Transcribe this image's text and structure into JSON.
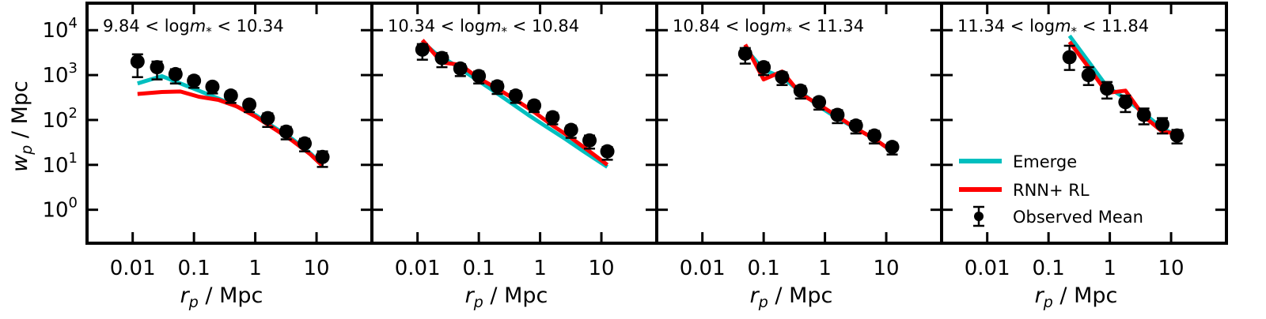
{
  "chart_data": {
    "type": "line",
    "layout": "1x4 panels, shared y-axis",
    "x_scale": "log",
    "y_scale": "log",
    "xlim": [
      0.0018,
      80
    ],
    "ylim": [
      0.18,
      40000
    ],
    "x_ticks": [
      {
        "value": 0.01,
        "label": "0.01"
      },
      {
        "value": 0.1,
        "label": "0.1"
      },
      {
        "value": 1,
        "label": "1"
      },
      {
        "value": 10,
        "label": "10"
      }
    ],
    "y_ticks": [
      {
        "value": 1,
        "base": "10",
        "exp": "0"
      },
      {
        "value": 10,
        "base": "10",
        "exp": "1"
      },
      {
        "value": 100,
        "base": "10",
        "exp": "2"
      },
      {
        "value": 1000,
        "base": "10",
        "exp": "3"
      },
      {
        "value": 10000,
        "base": "10",
        "exp": "4"
      }
    ],
    "xlabel": {
      "var": "r",
      "sub": "p",
      "unit": "/ Mpc"
    },
    "ylabel": {
      "var": "w",
      "sub": "p",
      "unit": "/ Mpc"
    },
    "grid": false,
    "legend": {
      "placement": "lower-right of last panel",
      "entries": [
        {
          "label": "Emerge",
          "color": "#00bfbf",
          "kind": "line"
        },
        {
          "label": "RNN+ RL",
          "color": "#ff0000",
          "kind": "line"
        },
        {
          "label": "Observed Mean",
          "color": "#000000",
          "kind": "errorbar"
        }
      ]
    },
    "colors": {
      "emerge": "#00bfbf",
      "rnn": "#ff0000",
      "observed": "#000000"
    },
    "panels": [
      {
        "label": {
          "low": "9.84",
          "high": "10.34"
        },
        "observed": {
          "x": [
            0.012,
            0.025,
            0.05,
            0.1,
            0.2,
            0.4,
            0.8,
            1.6,
            3.2,
            6.4,
            12.5
          ],
          "y": [
            2000,
            1500,
            1050,
            750,
            550,
            350,
            220,
            110,
            55,
            30,
            15
          ],
          "yerr_low": [
            1100,
            700,
            400,
            230,
            160,
            110,
            70,
            40,
            18,
            10,
            6
          ],
          "yerr_high": [
            900,
            500,
            300,
            180,
            120,
            80,
            50,
            30,
            15,
            8,
            5
          ]
        },
        "emerge": {
          "x": [
            0.012,
            0.03,
            0.06,
            0.12,
            0.25,
            0.5,
            1,
            2,
            4,
            8,
            12.5
          ],
          "y": [
            650,
            950,
            650,
            450,
            300,
            200,
            130,
            70,
            38,
            18,
            10
          ]
        },
        "rnn": {
          "x": [
            0.012,
            0.03,
            0.06,
            0.12,
            0.25,
            0.5,
            1,
            2,
            4,
            8,
            12.5
          ],
          "y": [
            380,
            420,
            430,
            330,
            280,
            200,
            120,
            65,
            35,
            17,
            9.5
          ]
        }
      },
      {
        "label": {
          "low": "10.34",
          "high": "10.84"
        },
        "observed": {
          "x": [
            0.012,
            0.025,
            0.05,
            0.1,
            0.2,
            0.4,
            0.8,
            1.6,
            3.2,
            6.4,
            12.5
          ],
          "y": [
            3700,
            2400,
            1400,
            950,
            560,
            350,
            210,
            115,
            60,
            35,
            20
          ],
          "yerr_low": [
            1500,
            900,
            450,
            300,
            180,
            110,
            60,
            35,
            20,
            12,
            7
          ],
          "yerr_high": [
            1200,
            700,
            350,
            250,
            150,
            90,
            50,
            30,
            15,
            10,
            5
          ]
        },
        "emerge": {
          "x": [
            0.012,
            0.02,
            0.04,
            0.08,
            0.16,
            0.32,
            0.64,
            1.28,
            2.56,
            5.12,
            12.5
          ],
          "y": [
            5500,
            3000,
            1700,
            900,
            480,
            250,
            130,
            70,
            38,
            20,
            9
          ]
        },
        "rnn": {
          "x": [
            0.012,
            0.025,
            0.05,
            0.1,
            0.2,
            0.4,
            0.8,
            1.6,
            3.2,
            6.4,
            12.5
          ],
          "y": [
            6000,
            1900,
            1700,
            850,
            500,
            280,
            150,
            75,
            40,
            20,
            10
          ]
        }
      },
      {
        "label": {
          "low": "10.84",
          "high": "11.34"
        },
        "observed": {
          "x": [
            0.05,
            0.1,
            0.2,
            0.4,
            0.8,
            1.6,
            3.2,
            6.4,
            12.5
          ],
          "y": [
            3000,
            1500,
            900,
            450,
            250,
            130,
            75,
            45,
            25
          ],
          "yerr_low": [
            1200,
            500,
            300,
            150,
            80,
            45,
            25,
            15,
            8
          ],
          "yerr_high": [
            1000,
            400,
            250,
            120,
            60,
            35,
            20,
            12,
            6
          ]
        },
        "emerge": {
          "x": [
            0.05,
            0.1,
            0.2,
            0.4,
            0.8,
            1.6,
            3.2,
            6.4,
            12.5
          ],
          "y": [
            4000,
            1300,
            900,
            420,
            200,
            110,
            65,
            38,
            20
          ]
        },
        "rnn": {
          "x": [
            0.05,
            0.1,
            0.2,
            0.4,
            0.8,
            1.6,
            3.2,
            6.4,
            12.5
          ],
          "y": [
            4800,
            800,
            1200,
            380,
            220,
            120,
            65,
            38,
            20
          ]
        }
      },
      {
        "label": {
          "low": "11.34",
          "high": "11.84"
        },
        "observed": {
          "x": [
            0.22,
            0.45,
            0.9,
            1.8,
            3.6,
            7.2,
            12.5
          ],
          "y": [
            2500,
            1000,
            500,
            250,
            130,
            80,
            45
          ],
          "yerr_low": [
            1200,
            400,
            200,
            100,
            50,
            30,
            15
          ],
          "yerr_high": [
            2000,
            500,
            200,
            100,
            50,
            30,
            15
          ]
        },
        "emerge": {
          "x": [
            0.22,
            0.45,
            0.9,
            1.8,
            3.6,
            7.2,
            12.5
          ],
          "y": [
            7500,
            2000,
            550,
            300,
            140,
            65,
            45
          ]
        },
        "rnn": {
          "x": [
            0.22,
            0.45,
            0.9,
            1.8,
            3.6,
            7.2,
            12.5
          ],
          "y": [
            5500,
            1500,
            400,
            450,
            120,
            55,
            50
          ]
        }
      }
    ]
  }
}
